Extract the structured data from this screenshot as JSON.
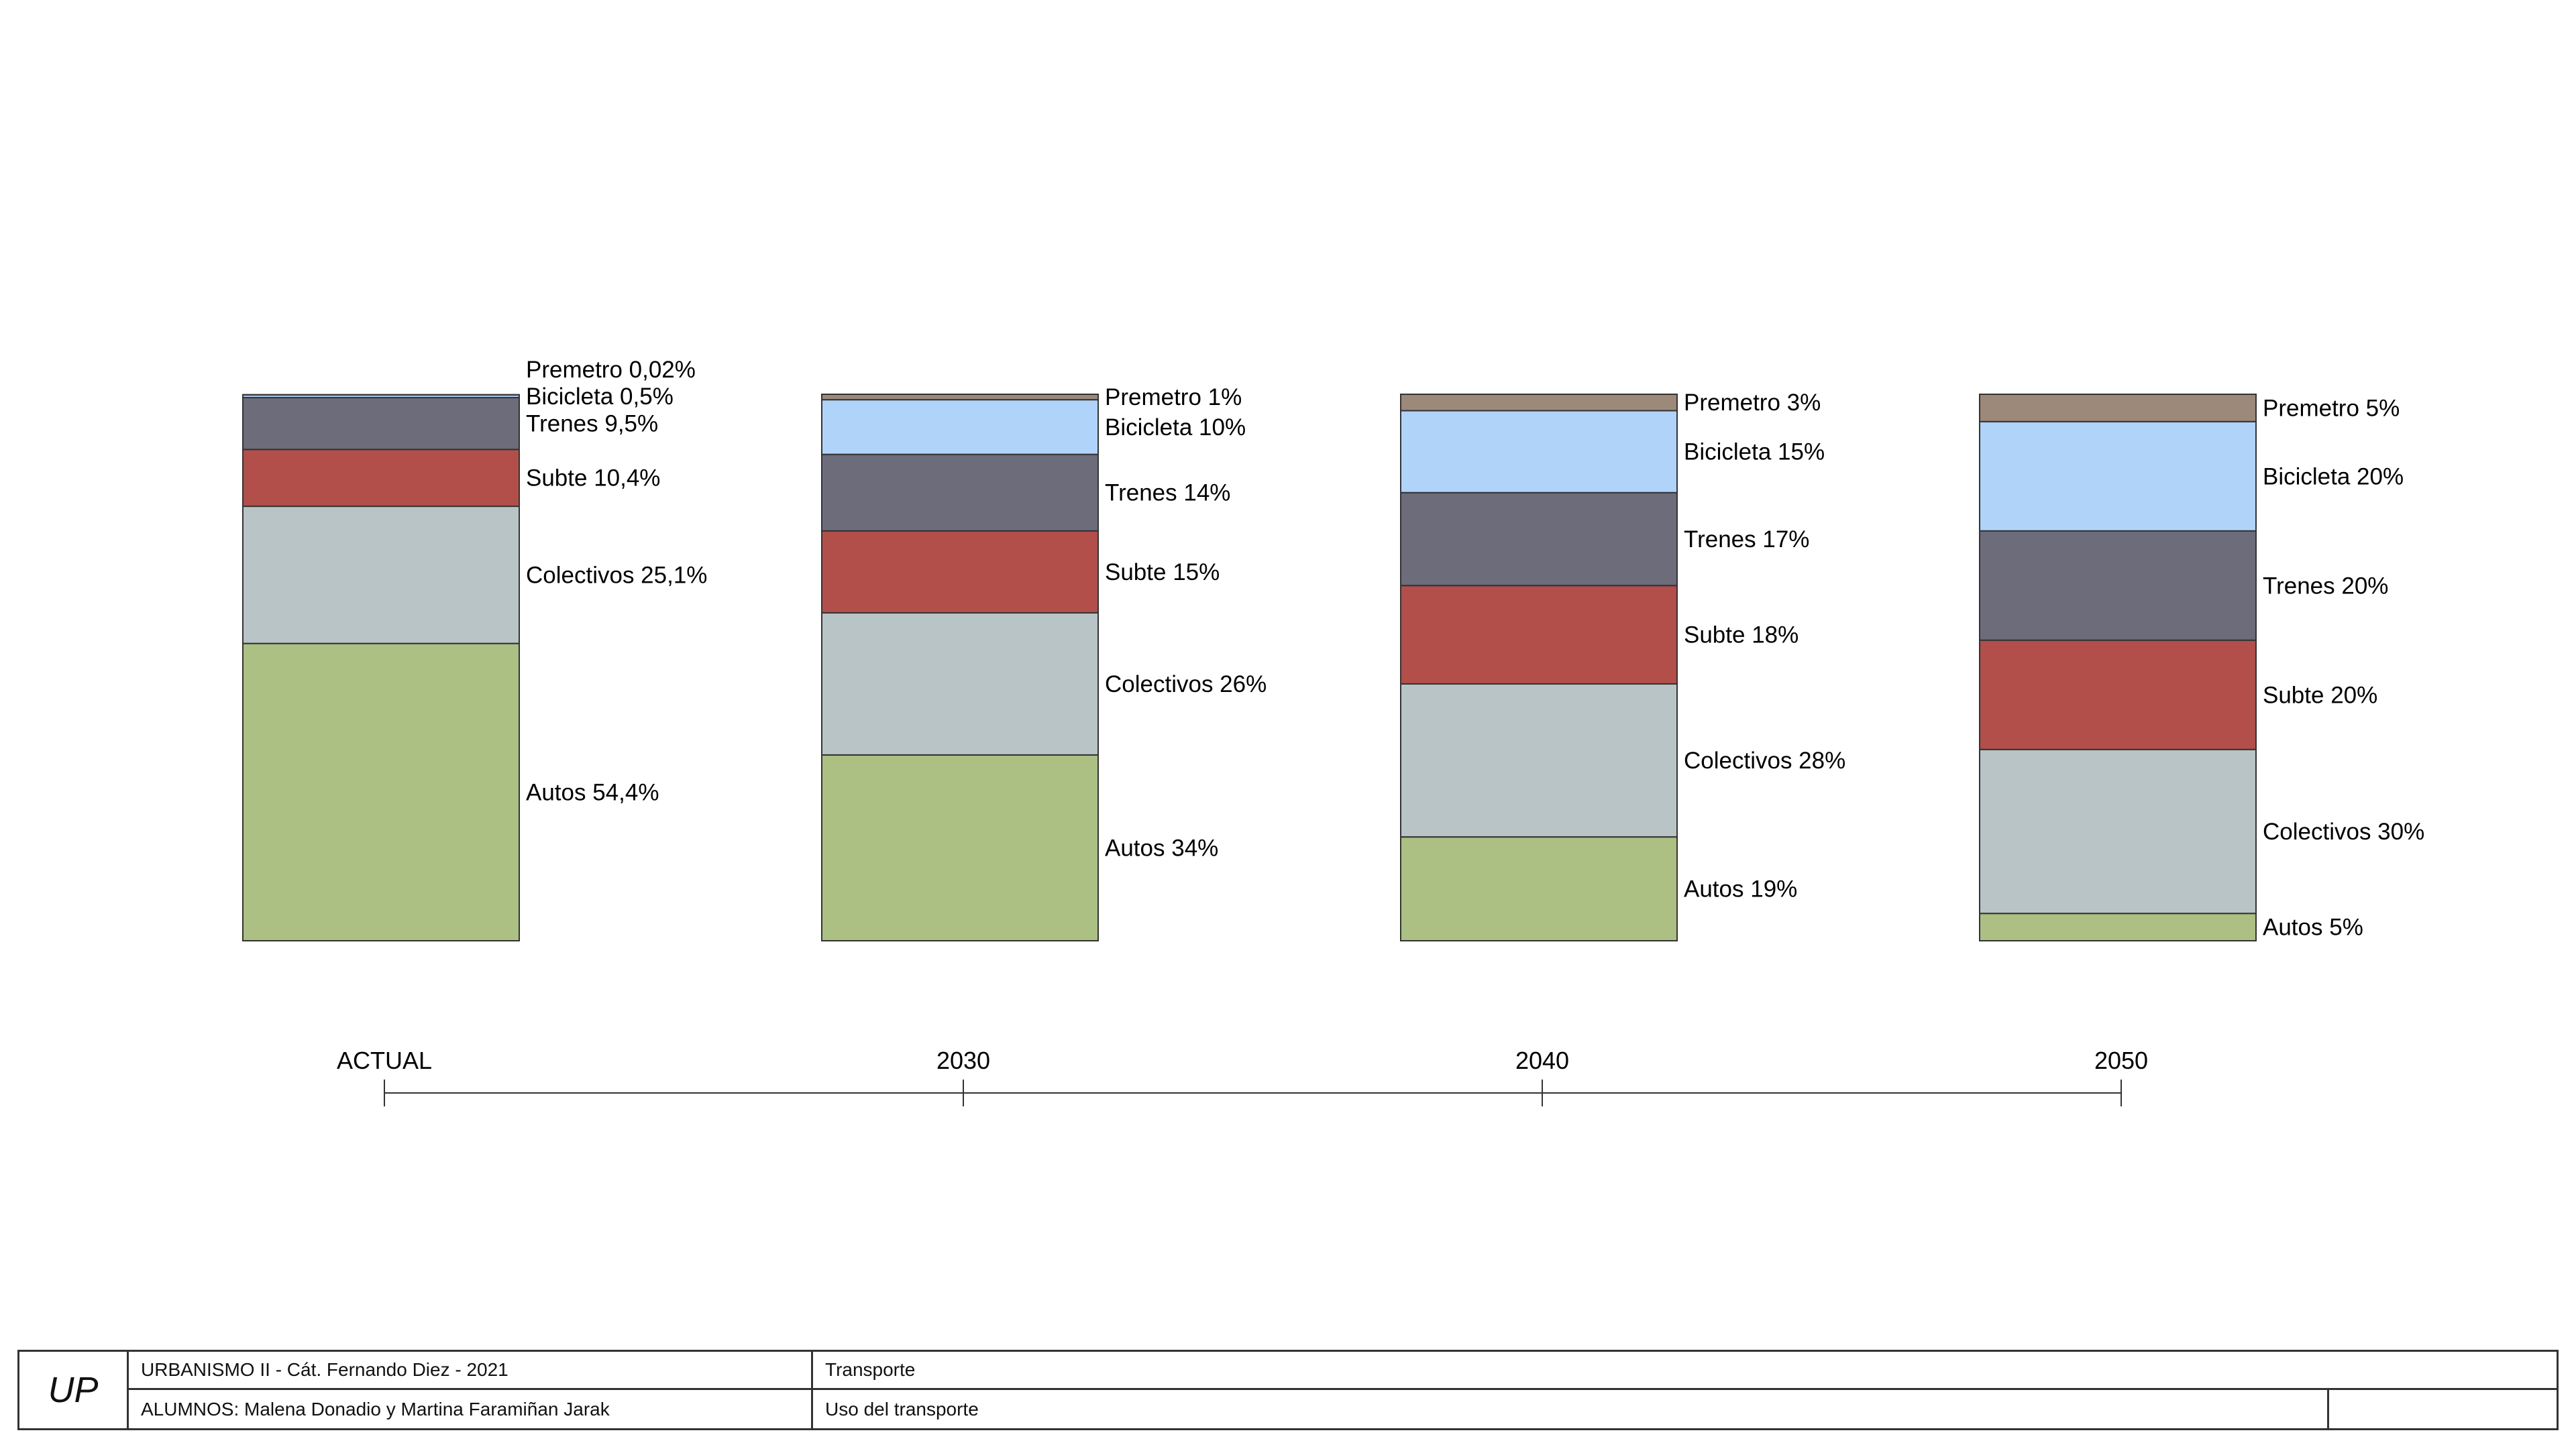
{
  "chart_data": {
    "type": "bar",
    "stacked": true,
    "categories": [
      "ACTUAL",
      "2030",
      "2040",
      "2050"
    ],
    "series": [
      {
        "name": "Autos",
        "color": "#adc084",
        "labels": [
          "Autos 54,4%",
          "Autos 34%",
          "Autos 19%",
          "Autos 5%"
        ],
        "values": [
          54.4,
          34,
          19,
          5
        ]
      },
      {
        "name": "Colectivos",
        "color": "#b9c4c6",
        "labels": [
          "Colectivos 25,1%",
          "Colectivos 26%",
          "Colectivos 28%",
          "Colectivos 30%"
        ],
        "values": [
          25.1,
          26,
          28,
          30
        ]
      },
      {
        "name": "Subte",
        "color": "#b24f4b",
        "labels": [
          "Subte 10,4%",
          "Subte 15%",
          "Subte 18%",
          "Subte 20%"
        ],
        "values": [
          10.4,
          15,
          18,
          20
        ]
      },
      {
        "name": "Trenes",
        "color": "#6d6c7a",
        "labels": [
          "Trenes 9,5%",
          "Trenes 14%",
          "Trenes 17%",
          "Trenes 20%"
        ],
        "values": [
          9.5,
          14,
          17,
          20
        ]
      },
      {
        "name": "Bicicleta",
        "color": "#b0d4f9",
        "labels": [
          "Bicicleta 0,5%",
          "Bicicleta 10%",
          "Bicicleta 15%",
          "Bicicleta 20%"
        ],
        "values": [
          0.5,
          10,
          15,
          20
        ]
      },
      {
        "name": "Premetro",
        "color": "#9c8979",
        "labels": [
          "Premetro 0,02%",
          "Premetro 1%",
          "Premetro 3%",
          "Premetro 5%"
        ],
        "values": [
          0.02,
          1,
          3,
          5
        ]
      }
    ],
    "ylim": [
      0,
      100
    ],
    "grid": false,
    "legend": "inline-right-of-bars"
  },
  "title_block": {
    "logo": "UP",
    "course": "URBANISMO II - Cát. Fernando Diez - 2021",
    "students": "ALUMNOS: Malena Donadio y Martina Faramiñan Jarak",
    "topic": "Transporte",
    "subtitle": "Uso del transporte"
  }
}
